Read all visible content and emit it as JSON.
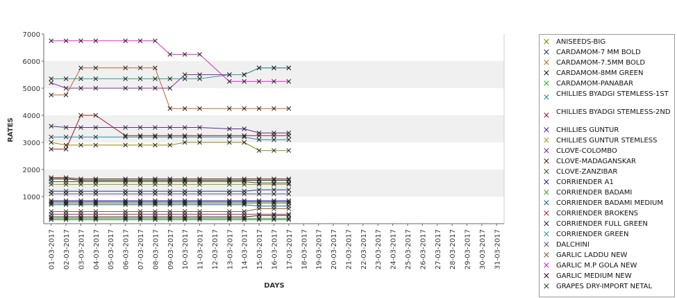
{
  "chart_data": {
    "type": "line",
    "title": "",
    "xlabel": "DAYS",
    "ylabel": "RATES",
    "ylim": [
      0,
      7000
    ],
    "yticks": [
      1000,
      2000,
      3000,
      4000,
      5000,
      6000,
      7000
    ],
    "grid": "alternating horizontal bands",
    "legend": "right",
    "categories": [
      "01-03-2017",
      "02-03-2017",
      "03-03-2017",
      "04-03-2017",
      "05-03-2017",
      "06-03-2017",
      "07-03-2017",
      "08-03-2017",
      "09-03-2017",
      "10-03-2017",
      "11-03-2017",
      "12-03-2017",
      "13-03-2017",
      "14-03-2017",
      "15-03-2017",
      "16-03-2017",
      "17-03-2017",
      "18-03-2017",
      "19-03-2017",
      "20-03-2017",
      "21-03-2017",
      "22-03-2017",
      "23-03-2017",
      "24-03-2017",
      "25-03-2017",
      "26-03-2017",
      "27-03-2017",
      "28-03-2017",
      "29-03-2017",
      "30-03-2017",
      "31-03-2017"
    ],
    "series": [
      {
        "name": "ANISEEDS-BIG",
        "color": "#8a8a00",
        "x": [
          "01-03-2017",
          "02-03-2017",
          "03-03-2017",
          "04-03-2017",
          "06-03-2017",
          "07-03-2017",
          "08-03-2017",
          "09-03-2017",
          "10-03-2017",
          "11-03-2017",
          "13-03-2017",
          "14-03-2017",
          "15-03-2017",
          "16-03-2017",
          "17-03-2017"
        ],
        "values": [
          3000,
          2900,
          2900,
          2900,
          2900,
          2900,
          2900,
          2900,
          3000,
          3000,
          3000,
          3000,
          2700,
          2700,
          2700
        ]
      },
      {
        "name": "CARDAMOM-7 MM BOLD",
        "color": "#1f3a8a",
        "x": [
          "01-03-2017",
          "02-03-2017",
          "03-03-2017",
          "04-03-2017",
          "06-03-2017",
          "07-03-2017",
          "08-03-2017",
          "09-03-2017",
          "10-03-2017",
          "11-03-2017",
          "13-03-2017",
          "14-03-2017",
          "15-03-2017",
          "16-03-2017",
          "17-03-2017"
        ],
        "values": [
          1200,
          1200,
          1200,
          1200,
          1200,
          1200,
          1200,
          1200,
          1200,
          1200,
          1200,
          1200,
          1250,
          1250,
          1250
        ]
      },
      {
        "name": "CARDAMOM-7.5MM BOLD",
        "color": "#c0662b",
        "x": [
          "01-03-2017",
          "02-03-2017",
          "03-03-2017",
          "04-03-2017",
          "06-03-2017",
          "07-03-2017",
          "08-03-2017",
          "09-03-2017",
          "10-03-2017",
          "11-03-2017",
          "13-03-2017",
          "14-03-2017",
          "15-03-2017",
          "16-03-2017",
          "17-03-2017"
        ],
        "values": [
          4750,
          4750,
          5750,
          5750,
          5750,
          5750,
          5750,
          4250,
          4250,
          4250,
          4250,
          4250,
          4250,
          4250,
          4250
        ]
      },
      {
        "name": "CARDAMOM-8MM GREEN",
        "color": "#222222",
        "x": [
          "01-03-2017",
          "02-03-2017",
          "03-03-2017",
          "04-03-2017",
          "06-03-2017",
          "07-03-2017",
          "08-03-2017",
          "09-03-2017",
          "10-03-2017",
          "11-03-2017",
          "13-03-2017",
          "14-03-2017",
          "15-03-2017",
          "16-03-2017",
          "17-03-2017"
        ],
        "values": [
          1650,
          1650,
          1600,
          1600,
          1600,
          1600,
          1600,
          1600,
          1600,
          1600,
          1600,
          1600,
          1600,
          1600,
          1600
        ]
      },
      {
        "name": "CARDAMOM-PANABAR",
        "color": "#22bb22",
        "x": [
          "01-03-2017",
          "02-03-2017",
          "03-03-2017",
          "04-03-2017",
          "06-03-2017",
          "07-03-2017",
          "08-03-2017",
          "09-03-2017",
          "10-03-2017",
          "11-03-2017",
          "13-03-2017",
          "14-03-2017",
          "15-03-2017",
          "16-03-2017",
          "17-03-2017"
        ],
        "values": [
          200,
          200,
          200,
          200,
          200,
          200,
          200,
          200,
          200,
          200,
          200,
          200,
          200,
          200,
          200
        ]
      },
      {
        "name": "CHILLIES BYADGI STEMLESS-1ST",
        "color": "#2a8aa0",
        "x": [
          "01-03-2017",
          "02-03-2017",
          "03-03-2017",
          "04-03-2017",
          "06-03-2017",
          "07-03-2017",
          "08-03-2017",
          "09-03-2017",
          "10-03-2017",
          "11-03-2017",
          "13-03-2017",
          "14-03-2017",
          "15-03-2017",
          "16-03-2017",
          "17-03-2017"
        ],
        "values": [
          3200,
          3200,
          3200,
          3200,
          3200,
          3200,
          3200,
          3200,
          3200,
          3200,
          3200,
          3200,
          3100,
          3100,
          3100
        ]
      },
      {
        "name": "CHILLIES BYADGI STEMLESS-2ND",
        "color": "#a01a1a",
        "x": [
          "01-03-2017",
          "02-03-2017",
          "03-03-2017",
          "04-03-2017",
          "06-03-2017",
          "07-03-2017",
          "08-03-2017",
          "09-03-2017",
          "10-03-2017",
          "11-03-2017",
          "13-03-2017",
          "14-03-2017",
          "15-03-2017",
          "16-03-2017",
          "17-03-2017"
        ],
        "values": [
          2750,
          2750,
          4000,
          4000,
          3250,
          3250,
          3250,
          3250,
          3250,
          3250,
          3250,
          3250,
          3250,
          3250,
          3250
        ]
      },
      {
        "name": "CHILLIES GUNTUR",
        "color": "#5a2a9a",
        "x": [
          "01-03-2017",
          "02-03-2017",
          "03-03-2017",
          "04-03-2017",
          "06-03-2017",
          "07-03-2017",
          "08-03-2017",
          "09-03-2017",
          "10-03-2017",
          "11-03-2017",
          "13-03-2017",
          "14-03-2017",
          "15-03-2017",
          "16-03-2017",
          "17-03-2017"
        ],
        "values": [
          3600,
          3550,
          3550,
          3550,
          3550,
          3550,
          3550,
          3550,
          3550,
          3550,
          3500,
          3500,
          3350,
          3350,
          3350
        ]
      },
      {
        "name": "CHILLIES GUNTUR STEMLESS",
        "color": "#a0a020",
        "x": [
          "01-03-2017",
          "02-03-2017",
          "03-03-2017",
          "04-03-2017",
          "06-03-2017",
          "07-03-2017",
          "08-03-2017",
          "09-03-2017",
          "10-03-2017",
          "11-03-2017",
          "13-03-2017",
          "14-03-2017",
          "15-03-2017",
          "16-03-2017",
          "17-03-2017"
        ],
        "values": [
          1450,
          1450,
          1450,
          1450,
          1450,
          1450,
          1450,
          1450,
          1450,
          1450,
          1450,
          1450,
          1450,
          1450,
          1450
        ]
      },
      {
        "name": "CLOVE-COLOMBO",
        "color": "#8a2ab0",
        "x": [
          "01-03-2017",
          "02-03-2017",
          "03-03-2017",
          "04-03-2017",
          "06-03-2017",
          "07-03-2017",
          "08-03-2017",
          "09-03-2017",
          "10-03-2017",
          "11-03-2017",
          "13-03-2017",
          "14-03-2017",
          "15-03-2017",
          "16-03-2017",
          "17-03-2017"
        ],
        "values": [
          5200,
          5000,
          5000,
          5000,
          5000,
          5000,
          5000,
          5000,
          5500,
          5500,
          5500,
          5500,
          5750,
          5750,
          5750
        ]
      },
      {
        "name": "CLOVE-MADAGANSKAR",
        "color": "#6a1a00",
        "x": [
          "01-03-2017",
          "02-03-2017",
          "03-03-2017",
          "04-03-2017",
          "06-03-2017",
          "07-03-2017",
          "08-03-2017",
          "09-03-2017",
          "10-03-2017",
          "11-03-2017",
          "13-03-2017",
          "14-03-2017",
          "15-03-2017",
          "16-03-2017",
          "17-03-2017"
        ],
        "values": [
          1700,
          1700,
          1650,
          1650,
          1650,
          1650,
          1650,
          1650,
          1650,
          1650,
          1650,
          1650,
          1650,
          1650,
          1650
        ]
      },
      {
        "name": "CLOVE-ZANZIBAR",
        "color": "#3a6a1a",
        "x": [
          "01-03-2017",
          "02-03-2017",
          "03-03-2017",
          "04-03-2017",
          "06-03-2017",
          "07-03-2017",
          "08-03-2017",
          "09-03-2017",
          "10-03-2017",
          "11-03-2017",
          "13-03-2017",
          "14-03-2017",
          "15-03-2017",
          "16-03-2017",
          "17-03-2017"
        ],
        "values": [
          1550,
          1550,
          1550,
          1550,
          1550,
          1550,
          1550,
          1550,
          1550,
          1550,
          1550,
          1550,
          1500,
          1500,
          1500
        ]
      },
      {
        "name": "CORRIENDER A1",
        "color": "#2a1ab0",
        "x": [
          "01-03-2017",
          "02-03-2017",
          "03-03-2017",
          "04-03-2017",
          "06-03-2017",
          "07-03-2017",
          "08-03-2017",
          "09-03-2017",
          "10-03-2017",
          "11-03-2017",
          "13-03-2017",
          "14-03-2017",
          "15-03-2017",
          "16-03-2017",
          "17-03-2017"
        ],
        "values": [
          850,
          850,
          850,
          850,
          850,
          850,
          850,
          850,
          850,
          850,
          850,
          850,
          850,
          850,
          850
        ]
      },
      {
        "name": "CORRIENDER BADAMI",
        "color": "#4aa02a",
        "x": [
          "01-03-2017",
          "02-03-2017",
          "03-03-2017",
          "04-03-2017",
          "06-03-2017",
          "07-03-2017",
          "08-03-2017",
          "09-03-2017",
          "10-03-2017",
          "11-03-2017",
          "13-03-2017",
          "14-03-2017",
          "15-03-2017",
          "16-03-2017",
          "17-03-2017"
        ],
        "values": [
          750,
          750,
          750,
          750,
          750,
          750,
          750,
          750,
          750,
          750,
          750,
          750,
          750,
          750,
          750
        ]
      },
      {
        "name": "CORRIENDER BADAMI MEDIUM",
        "color": "#1a6a8a",
        "x": [
          "01-03-2017",
          "02-03-2017",
          "03-03-2017",
          "04-03-2017",
          "06-03-2017",
          "07-03-2017",
          "08-03-2017",
          "09-03-2017",
          "10-03-2017",
          "11-03-2017",
          "13-03-2017",
          "14-03-2017",
          "15-03-2017",
          "16-03-2017",
          "17-03-2017"
        ],
        "values": [
          700,
          700,
          700,
          700,
          700,
          700,
          700,
          700,
          700,
          700,
          700,
          700,
          650,
          650,
          650
        ]
      },
      {
        "name": "CORRIENDER BROKENS",
        "color": "#b02a4a",
        "x": [
          "01-03-2017",
          "02-03-2017",
          "03-03-2017",
          "04-03-2017",
          "06-03-2017",
          "07-03-2017",
          "08-03-2017",
          "09-03-2017",
          "10-03-2017",
          "11-03-2017",
          "13-03-2017",
          "14-03-2017",
          "15-03-2017",
          "16-03-2017",
          "17-03-2017"
        ],
        "values": [
          350,
          350,
          350,
          350,
          350,
          350,
          350,
          350,
          350,
          350,
          350,
          350,
          350,
          350,
          350
        ]
      },
      {
        "name": "CORRIENDER FULL GREEN",
        "color": "#3a1a5a",
        "x": [
          "01-03-2017",
          "02-03-2017",
          "03-03-2017",
          "04-03-2017",
          "06-03-2017",
          "07-03-2017",
          "08-03-2017",
          "09-03-2017",
          "10-03-2017",
          "11-03-2017",
          "13-03-2017",
          "14-03-2017",
          "15-03-2017",
          "16-03-2017",
          "17-03-2017"
        ],
        "values": [
          800,
          800,
          800,
          800,
          800,
          800,
          800,
          800,
          800,
          800,
          800,
          800,
          800,
          800,
          800
        ]
      },
      {
        "name": "CORRIENDER GREEN",
        "color": "#2aa08a",
        "x": [
          "01-03-2017",
          "02-03-2017",
          "03-03-2017",
          "04-03-2017",
          "06-03-2017",
          "07-03-2017",
          "08-03-2017",
          "09-03-2017",
          "10-03-2017",
          "11-03-2017",
          "13-03-2017",
          "14-03-2017",
          "15-03-2017",
          "16-03-2017",
          "17-03-2017"
        ],
        "values": [
          5350,
          5350,
          5350,
          5350,
          5350,
          5350,
          5350,
          5350,
          5350,
          5350,
          5500,
          5500,
          5750,
          5750,
          5750
        ]
      },
      {
        "name": "DALCHINI",
        "color": "#5a5a8a",
        "x": [
          "01-03-2017",
          "02-03-2017",
          "03-03-2017",
          "04-03-2017",
          "06-03-2017",
          "07-03-2017",
          "08-03-2017",
          "09-03-2017",
          "10-03-2017",
          "11-03-2017",
          "13-03-2017",
          "14-03-2017",
          "15-03-2017",
          "16-03-2017",
          "17-03-2017"
        ],
        "values": [
          1100,
          1100,
          1100,
          1100,
          1100,
          1100,
          1100,
          1100,
          1100,
          1100,
          1100,
          1100,
          1100,
          1100,
          1100
        ]
      },
      {
        "name": "GARLIC LADDU NEW",
        "color": "#8a5a3a",
        "x": [
          "01-03-2017",
          "02-03-2017",
          "03-03-2017",
          "04-03-2017",
          "06-03-2017",
          "07-03-2017",
          "08-03-2017",
          "09-03-2017",
          "10-03-2017",
          "11-03-2017",
          "13-03-2017",
          "14-03-2017",
          "15-03-2017",
          "16-03-2017",
          "17-03-2017"
        ],
        "values": [
          450,
          450,
          450,
          450,
          450,
          450,
          450,
          450,
          450,
          450,
          450,
          450,
          550,
          550,
          550
        ]
      },
      {
        "name": "GARLIC M.P GOLA NEW",
        "color": "#dd22cc",
        "x": [
          "01-03-2017",
          "02-03-2017",
          "03-03-2017",
          "04-03-2017",
          "06-03-2017",
          "07-03-2017",
          "08-03-2017",
          "09-03-2017",
          "10-03-2017",
          "11-03-2017",
          "13-03-2017",
          "14-03-2017",
          "15-03-2017",
          "16-03-2017",
          "17-03-2017"
        ],
        "values": [
          6750,
          6750,
          6750,
          6750,
          6750,
          6750,
          6750,
          6250,
          6250,
          6250,
          5250,
          5250,
          5250,
          5250,
          5250
        ]
      },
      {
        "name": "GARLIC MEDIUM NEW",
        "color": "#4a0a2a",
        "x": [
          "01-03-2017",
          "02-03-2017",
          "03-03-2017",
          "04-03-2017",
          "06-03-2017",
          "07-03-2017",
          "08-03-2017",
          "09-03-2017",
          "10-03-2017",
          "11-03-2017",
          "13-03-2017",
          "14-03-2017",
          "15-03-2017",
          "16-03-2017",
          "17-03-2017"
        ],
        "values": [
          250,
          250,
          250,
          250,
          250,
          250,
          250,
          250,
          250,
          250,
          250,
          250,
          300,
          300,
          300
        ]
      },
      {
        "name": "GRAPES DRY-IMPORT NETAL",
        "color": "#1a5a1a",
        "x": [
          "01-03-2017",
          "02-03-2017",
          "03-03-2017",
          "04-03-2017",
          "06-03-2017",
          "07-03-2017",
          "08-03-2017",
          "09-03-2017",
          "10-03-2017",
          "11-03-2017",
          "13-03-2017",
          "14-03-2017",
          "15-03-2017",
          "16-03-2017",
          "17-03-2017"
        ],
        "values": [
          150,
          150,
          150,
          150,
          150,
          150,
          150,
          150,
          150,
          150,
          150,
          150,
          150,
          150,
          150
        ]
      }
    ]
  }
}
